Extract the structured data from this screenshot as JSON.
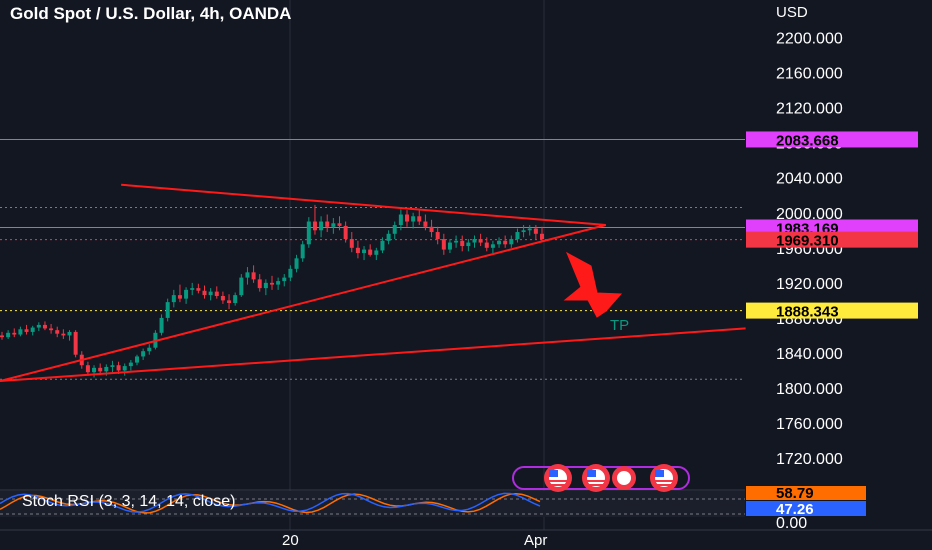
{
  "header": {
    "title": "Gold Spot / U.S. Dollar, 4h, OANDA",
    "unit": "USD"
  },
  "chart_data": {
    "type": "candlestick",
    "title": "Gold Spot / U.S. Dollar, 4h, OANDA",
    "ylabel": "USD",
    "ylim": [
      1695,
      2220
    ],
    "y_ticks": [
      "2200.000",
      "2160.000",
      "2120.000",
      "2080.000",
      "2040.000",
      "2000.000",
      "1960.000",
      "1920.000",
      "1880.000",
      "1840.000",
      "1800.000",
      "1760.000",
      "1720.000"
    ],
    "x_labels": [
      "20",
      "Apr"
    ],
    "price_tags": [
      {
        "value": "2083.668",
        "bg": "#e040fb",
        "fg": "#000000"
      },
      {
        "value": "1983.169",
        "bg": "#e040fb",
        "fg": "#000000"
      },
      {
        "value": "1969.310",
        "bg": "#f23645",
        "fg": "#000000"
      },
      {
        "value": "1888.343",
        "bg": "#ffeb3b",
        "fg": "#000000"
      }
    ],
    "horizontal_lines": [
      {
        "value": 2083.668,
        "color": "#e040fb",
        "style": "solid"
      },
      {
        "value": 1983.169,
        "color": "#e040fb",
        "style": "solid"
      },
      {
        "value": 2006,
        "color": "#787b86",
        "style": "dotted"
      },
      {
        "value": 1969.31,
        "color": "#f23645",
        "style": "dotted"
      },
      {
        "value": 1888.343,
        "color": "#ffeb3b",
        "style": "dotted"
      },
      {
        "value": 1810,
        "color": "#787b86",
        "style": "dotted"
      }
    ],
    "annotations": [
      {
        "text": "TP",
        "color": "#089981"
      }
    ],
    "candles": [
      [
        1860,
        1864,
        1855,
        1858
      ],
      [
        1858,
        1866,
        1856,
        1863
      ],
      [
        1863,
        1868,
        1858,
        1861
      ],
      [
        1861,
        1870,
        1859,
        1867
      ],
      [
        1867,
        1872,
        1861,
        1864
      ],
      [
        1864,
        1871,
        1860,
        1869
      ],
      [
        1869,
        1875,
        1865,
        1872
      ],
      [
        1872,
        1876,
        1866,
        1868
      ],
      [
        1868,
        1873,
        1862,
        1866
      ],
      [
        1866,
        1870,
        1858,
        1862
      ],
      [
        1862,
        1867,
        1856,
        1860
      ],
      [
        1860,
        1866,
        1854,
        1864
      ],
      [
        1864,
        1866,
        1835,
        1838
      ],
      [
        1838,
        1842,
        1822,
        1826
      ],
      [
        1826,
        1830,
        1814,
        1818
      ],
      [
        1818,
        1826,
        1812,
        1823
      ],
      [
        1823,
        1828,
        1815,
        1819
      ],
      [
        1819,
        1827,
        1814,
        1824
      ],
      [
        1824,
        1831,
        1818,
        1826
      ],
      [
        1826,
        1830,
        1816,
        1820
      ],
      [
        1820,
        1828,
        1814,
        1825
      ],
      [
        1825,
        1832,
        1820,
        1829
      ],
      [
        1829,
        1838,
        1826,
        1836
      ],
      [
        1836,
        1845,
        1832,
        1842
      ],
      [
        1842,
        1850,
        1838,
        1846
      ],
      [
        1846,
        1866,
        1844,
        1863
      ],
      [
        1863,
        1884,
        1860,
        1880
      ],
      [
        1880,
        1902,
        1876,
        1898
      ],
      [
        1898,
        1912,
        1892,
        1906
      ],
      [
        1906,
        1918,
        1898,
        1902
      ],
      [
        1902,
        1915,
        1896,
        1912
      ],
      [
        1912,
        1920,
        1906,
        1914
      ],
      [
        1914,
        1919,
        1908,
        1911
      ],
      [
        1911,
        1917,
        1902,
        1906
      ],
      [
        1906,
        1914,
        1900,
        1910
      ],
      [
        1910,
        1916,
        1902,
        1905
      ],
      [
        1905,
        1910,
        1896,
        1900
      ],
      [
        1900,
        1907,
        1890,
        1897
      ],
      [
        1897,
        1909,
        1894,
        1906
      ],
      [
        1906,
        1930,
        1904,
        1926
      ],
      [
        1926,
        1938,
        1918,
        1932
      ],
      [
        1932,
        1940,
        1920,
        1924
      ],
      [
        1924,
        1930,
        1910,
        1914
      ],
      [
        1914,
        1924,
        1906,
        1920
      ],
      [
        1920,
        1928,
        1912,
        1918
      ],
      [
        1918,
        1926,
        1912,
        1922
      ],
      [
        1922,
        1930,
        1916,
        1926
      ],
      [
        1926,
        1940,
        1922,
        1936
      ],
      [
        1936,
        1952,
        1932,
        1948
      ],
      [
        1948,
        1968,
        1944,
        1964
      ],
      [
        1964,
        1995,
        1960,
        1990
      ],
      [
        1990,
        2009,
        1975,
        1980
      ],
      [
        1980,
        1996,
        1972,
        1990
      ],
      [
        1990,
        1998,
        1978,
        1984
      ],
      [
        1984,
        1994,
        1976,
        1988
      ],
      [
        1988,
        1996,
        1980,
        1985
      ],
      [
        1985,
        1990,
        1966,
        1970
      ],
      [
        1970,
        1978,
        1955,
        1960
      ],
      [
        1960,
        1968,
        1948,
        1954
      ],
      [
        1954,
        1962,
        1946,
        1958
      ],
      [
        1958,
        1964,
        1950,
        1952
      ],
      [
        1952,
        1960,
        1946,
        1957
      ],
      [
        1957,
        1972,
        1954,
        1968
      ],
      [
        1968,
        1980,
        1964,
        1976
      ],
      [
        1976,
        1990,
        1970,
        1986
      ],
      [
        1986,
        2004,
        1980,
        1998
      ],
      [
        1998,
        2003,
        1984,
        1990
      ],
      [
        1990,
        2000,
        1982,
        1996
      ],
      [
        1996,
        2004,
        1986,
        1990
      ],
      [
        1990,
        1998,
        1980,
        1984
      ],
      [
        1984,
        1992,
        1972,
        1978
      ],
      [
        1978,
        1984,
        1964,
        1970
      ],
      [
        1970,
        1976,
        1952,
        1958
      ],
      [
        1958,
        1970,
        1954,
        1966
      ],
      [
        1966,
        1974,
        1960,
        1968
      ],
      [
        1968,
        1974,
        1956,
        1962
      ],
      [
        1962,
        1970,
        1956,
        1966
      ],
      [
        1966,
        1974,
        1960,
        1970
      ],
      [
        1970,
        1976,
        1962,
        1966
      ],
      [
        1966,
        1972,
        1956,
        1960
      ],
      [
        1960,
        1968,
        1954,
        1964
      ],
      [
        1964,
        1972,
        1960,
        1968
      ],
      [
        1968,
        1974,
        1960,
        1964
      ],
      [
        1964,
        1974,
        1960,
        1970
      ],
      [
        1970,
        1982,
        1966,
        1978
      ],
      [
        1978,
        1986,
        1972,
        1980
      ],
      [
        1980,
        1986,
        1974,
        1982
      ],
      [
        1982,
        1986,
        1970,
        1976
      ],
      [
        1976,
        1984,
        1968,
        1970
      ]
    ],
    "trendlines": [
      {
        "name": "triangle-upper",
        "from": [
          0.13,
          2032
        ],
        "to": [
          0.65,
          1986
        ]
      },
      {
        "name": "triangle-lower",
        "from": [
          0.0,
          1808
        ],
        "to": [
          0.65,
          1986
        ]
      },
      {
        "name": "lower-channel",
        "from": [
          0.0,
          1808
        ],
        "to": [
          0.8,
          1868
        ]
      }
    ],
    "oscillator": {
      "label": "Stoch RSI (3, 3, 14, 14, close)",
      "k_value": "58.79",
      "d_value": "47.26",
      "axis_ticks": [
        "0.00"
      ],
      "k_color": "#2962ff",
      "d_color": "#ff6d00"
    }
  },
  "colors": {
    "up": "#089981",
    "down": "#f23645",
    "grid": "#2a2e39",
    "trend": "#ff1a1a"
  }
}
